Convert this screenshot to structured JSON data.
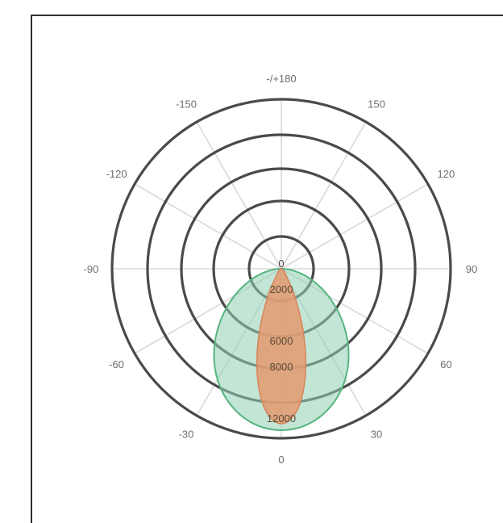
{
  "chart_data": {
    "type": "polar",
    "grid": true,
    "legend": "none",
    "angle_ticks": [
      {
        "angle": 180,
        "label": "-/+180"
      },
      {
        "angle": 150,
        "label": "150"
      },
      {
        "angle": 120,
        "label": "120"
      },
      {
        "angle": 90,
        "label": "90"
      },
      {
        "angle": 60,
        "label": "60"
      },
      {
        "angle": 30,
        "label": "30"
      },
      {
        "angle": 0,
        "label": "0"
      },
      {
        "angle": -30,
        "label": "-30"
      },
      {
        "angle": -60,
        "label": "-60"
      },
      {
        "angle": -90,
        "label": "-90"
      },
      {
        "angle": -120,
        "label": "-120"
      },
      {
        "angle": -150,
        "label": "-150"
      }
    ],
    "radial_ticks": [
      {
        "value": 0,
        "label": "0"
      },
      {
        "value": 2000,
        "label": "2000"
      },
      {
        "value": 6000,
        "label": "6000"
      },
      {
        "value": 8000,
        "label": "8000"
      },
      {
        "value": 12000,
        "label": "12000"
      }
    ],
    "rlim": [
      0,
      16000
    ],
    "series": [
      {
        "color": "#8fd0b4",
        "stroke": "#56b57e",
        "points": [
          {
            "angle": 0,
            "r": 12500
          },
          {
            "angle": 10,
            "r": 12200
          },
          {
            "angle": 20,
            "r": 11300
          },
          {
            "angle": 30,
            "r": 9900
          },
          {
            "angle": 40,
            "r": 8100
          },
          {
            "angle": 50,
            "r": 6100
          },
          {
            "angle": 60,
            "r": 4200
          },
          {
            "angle": 70,
            "r": 2500
          },
          {
            "angle": 80,
            "r": 1100
          },
          {
            "angle": 90,
            "r": 0
          },
          {
            "angle": -80,
            "r": 1100
          },
          {
            "angle": -70,
            "r": 2500
          },
          {
            "angle": -60,
            "r": 4200
          },
          {
            "angle": -50,
            "r": 6100
          },
          {
            "angle": -40,
            "r": 8100
          },
          {
            "angle": -30,
            "r": 9900
          },
          {
            "angle": -20,
            "r": 11300
          },
          {
            "angle": -10,
            "r": 12200
          }
        ]
      },
      {
        "color": "#e39a6e",
        "stroke": "#d9835a",
        "points": [
          {
            "angle": 0,
            "r": 12000
          },
          {
            "angle": 4,
            "r": 11600
          },
          {
            "angle": 8,
            "r": 10500
          },
          {
            "angle": 12,
            "r": 8800
          },
          {
            "angle": 16,
            "r": 6800
          },
          {
            "angle": 20,
            "r": 4800
          },
          {
            "angle": 25,
            "r": 2700
          },
          {
            "angle": 32,
            "r": 1000
          },
          {
            "angle": 45,
            "r": 0
          },
          {
            "angle": -32,
            "r": 1000
          },
          {
            "angle": -25,
            "r": 2700
          },
          {
            "angle": -20,
            "r": 4800
          },
          {
            "angle": -16,
            "r": 6800
          },
          {
            "angle": -12,
            "r": 8800
          },
          {
            "angle": -8,
            "r": 10500
          },
          {
            "angle": -4,
            "r": 11600
          }
        ]
      }
    ]
  }
}
